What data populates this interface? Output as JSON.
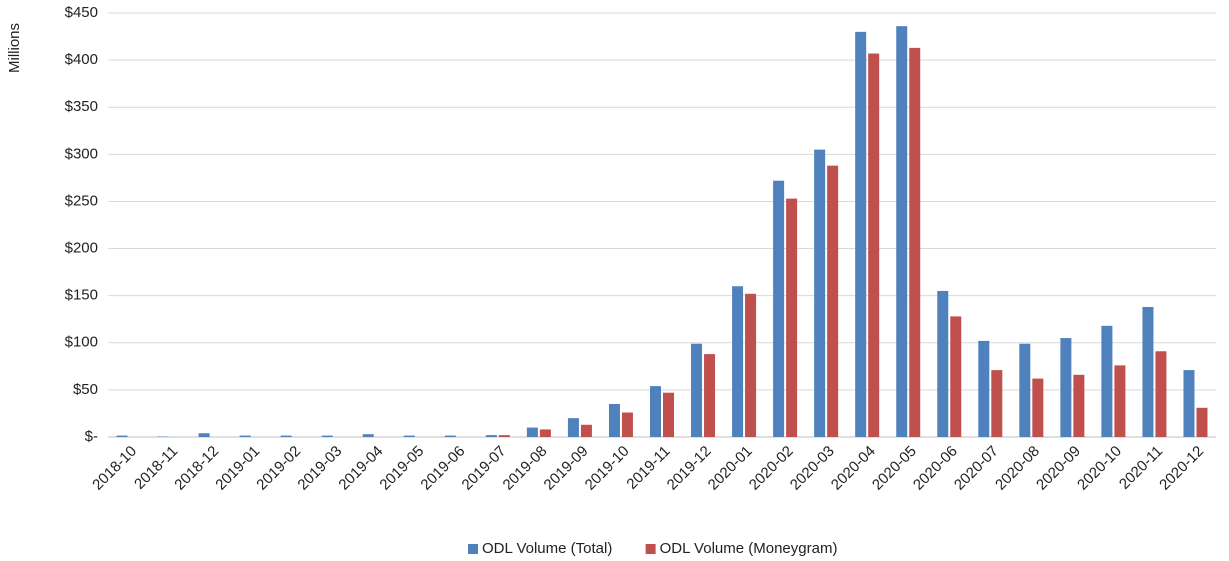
{
  "chart_data": {
    "type": "bar",
    "y_label": "Millions",
    "categories": [
      "2018-10",
      "2018-11",
      "2018-12",
      "2019-01",
      "2019-02",
      "2019-03",
      "2019-04",
      "2019-05",
      "2019-06",
      "2019-07",
      "2019-08",
      "2019-09",
      "2019-10",
      "2019-11",
      "2019-12",
      "2020-01",
      "2020-02",
      "2020-03",
      "2020-04",
      "2020-05",
      "2020-06",
      "2020-07",
      "2020-08",
      "2020-09",
      "2020-10",
      "2020-11",
      "2020-12"
    ],
    "series": [
      {
        "name": "ODL Volume (Total)",
        "color": "#4f81bd",
        "values": [
          1.5,
          0.5,
          4,
          1.5,
          1.5,
          1.5,
          3,
          1.5,
          1.5,
          2,
          10,
          20,
          35,
          54,
          99,
          160,
          272,
          305,
          430,
          436,
          155,
          102,
          99,
          105,
          118,
          138,
          71
        ]
      },
      {
        "name": "ODL Volume (Moneygram)",
        "color": "#c0504d",
        "values": [
          0,
          0,
          0,
          0,
          0,
          0,
          0,
          0,
          0,
          2,
          8,
          13,
          26,
          47,
          88,
          152,
          253,
          288,
          407,
          413,
          128,
          71,
          62,
          66,
          76,
          91,
          31
        ]
      }
    ],
    "ylim": [
      0,
      450
    ],
    "yticks": [
      {
        "value": 0,
        "label": "$-"
      },
      {
        "value": 50,
        "label": "$50"
      },
      {
        "value": 100,
        "label": "$100"
      },
      {
        "value": 150,
        "label": "$150"
      },
      {
        "value": 200,
        "label": "$200"
      },
      {
        "value": 250,
        "label": "$250"
      },
      {
        "value": 300,
        "label": "$300"
      },
      {
        "value": 350,
        "label": "$350"
      },
      {
        "value": 400,
        "label": "$400"
      },
      {
        "value": 450,
        "label": "$450"
      }
    ],
    "grid": true,
    "legend": "bottom"
  }
}
